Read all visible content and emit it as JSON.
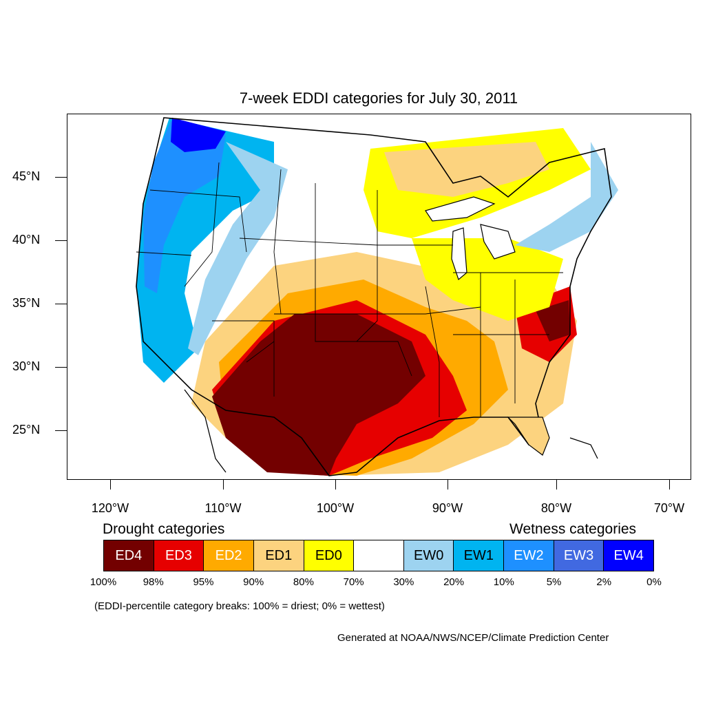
{
  "title": "7-week EDDI categories for July 30, 2011",
  "y_axis_labels": [
    "45°N",
    "40°N",
    "35°N",
    "30°N",
    "25°N"
  ],
  "x_axis_labels": [
    "120°W",
    "110°W",
    "100°W",
    "90°W",
    "80°W",
    "70°W"
  ],
  "legend": {
    "drought_heading": "Drought categories",
    "wetness_heading": "Wetness categories",
    "categories": [
      {
        "label": "ED4",
        "color": "#730000",
        "text_color": "#ffffff"
      },
      {
        "label": "ED3",
        "color": "#e60000",
        "text_color": "#ffffff"
      },
      {
        "label": "ED2",
        "color": "#ffaa00",
        "text_color": "#ffffff"
      },
      {
        "label": "ED1",
        "color": "#fcd37f",
        "text_color": "#000000"
      },
      {
        "label": "ED0",
        "color": "#ffff00",
        "text_color": "#000000"
      },
      {
        "label": "",
        "color": "#ffffff",
        "text_color": "#000000"
      },
      {
        "label": "EW0",
        "color": "#9dd3f0",
        "text_color": "#000000"
      },
      {
        "label": "EW1",
        "color": "#00b4f0",
        "text_color": "#000000"
      },
      {
        "label": "EW2",
        "color": "#1e90ff",
        "text_color": "#ffffff"
      },
      {
        "label": "EW3",
        "color": "#4169e1",
        "text_color": "#ffffff"
      },
      {
        "label": "EW4",
        "color": "#0000ff",
        "text_color": "#ffffff"
      }
    ],
    "breaks": [
      "100%",
      "98%",
      "95%",
      "90%",
      "80%",
      "70%",
      "30%",
      "20%",
      "10%",
      "5%",
      "2%",
      "0%"
    ]
  },
  "note": "(EDDI-percentile category breaks: 100% = driest; 0% = wettest)",
  "credit": "Generated at NOAA/NWS/NCEP/Climate Prediction Center"
}
